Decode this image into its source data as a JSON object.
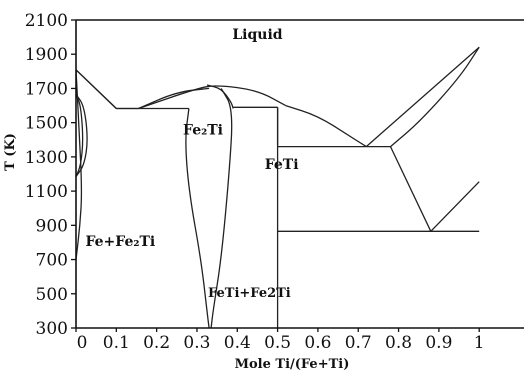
{
  "chart_data": {
    "type": "phase-diagram",
    "xlabel": "Mole Ti/(Fe+Ti)",
    "ylabel": "T (K)",
    "xlim": [
      0,
      1.0
    ],
    "ylim": [
      300,
      2100
    ],
    "x_ticks": [
      "0",
      "0.1",
      "0.2",
      "0.3",
      "0.4",
      "0.5",
      "0.6",
      "0.7",
      "0.8",
      "0.9",
      "1"
    ],
    "y_ticks": [
      "300",
      "500",
      "700",
      "900",
      "1100",
      "1300",
      "1500",
      "1700",
      "1900",
      "2100"
    ],
    "region_labels": [
      {
        "text": "Liquid",
        "x": 0.45,
        "y": 1990
      },
      {
        "text": "Fe₂Ti",
        "x": 0.315,
        "y": 1430
      },
      {
        "text": "FeTi",
        "x": 0.51,
        "y": 1230
      },
      {
        "text": "Fe+Fe₂Ti",
        "x": 0.11,
        "y": 780
      },
      {
        "text": "FeTi+Fe2Ti",
        "x": 0.43,
        "y": 480
      }
    ],
    "boundaries": [
      {
        "name": "liquidus-fe-left",
        "points": [
          [
            0,
            1809
          ],
          [
            0.1,
            1583
          ]
        ]
      },
      {
        "name": "solidus-fe-left",
        "points": [
          [
            0,
            1809
          ],
          [
            0.1,
            1583
          ]
        ]
      },
      {
        "name": "bcc-gamma-loop-outer",
        "points": [
          [
            0,
            1665
          ],
          [
            0.02,
            1600
          ],
          [
            0.03,
            1400
          ],
          [
            0.02,
            1250
          ],
          [
            0,
            1185
          ]
        ]
      },
      {
        "name": "bcc-gamma-loop-inner",
        "points": [
          [
            0,
            1665
          ],
          [
            0.012,
            1600
          ],
          [
            0.018,
            1400
          ],
          [
            0.012,
            1250
          ],
          [
            0,
            1185
          ]
        ]
      },
      {
        "name": "fe-solvus",
        "points": [
          [
            0,
            1809
          ],
          [
            0.008,
            1450
          ],
          [
            0.015,
            1100
          ],
          [
            0.01,
            900
          ],
          [
            0,
            700
          ]
        ]
      },
      {
        "name": "eutectic-fe-fe2ti",
        "points": [
          [
            0.1,
            1583
          ],
          [
            0.28,
            1583
          ]
        ]
      },
      {
        "name": "liquidus-to-fe2ti-left",
        "points": [
          [
            0.1,
            1583
          ],
          [
            0.155,
            1583
          ]
        ]
      },
      {
        "name": "liquidus-to-fe2ti-right",
        "points": [
          [
            0.155,
            1583
          ],
          [
            0.25,
            1680
          ],
          [
            0.33,
            1700
          ]
        ]
      },
      {
        "name": "liquidus-over-fe2ti",
        "points": [
          [
            0.155,
            1583
          ],
          [
            0.3,
            1700
          ],
          [
            0.35,
            1720
          ],
          [
            0.45,
            1690
          ],
          [
            0.52,
            1600
          ]
        ]
      },
      {
        "name": "fe2ti-left-boundary",
        "points": [
          [
            0.28,
            1583
          ],
          [
            0.27,
            1400
          ],
          [
            0.28,
            1100
          ],
          [
            0.31,
            700
          ],
          [
            0.325,
            400
          ],
          [
            0.33,
            300
          ]
        ]
      },
      {
        "name": "fe2ti-right-boundary",
        "points": [
          [
            0.36,
            1700
          ],
          [
            0.39,
            1583
          ],
          [
            0.38,
            1200
          ],
          [
            0.36,
            700
          ],
          [
            0.34,
            400
          ],
          [
            0.335,
            300
          ]
        ]
      },
      {
        "name": "fe2ti-peak-right",
        "points": [
          [
            0.325,
            1720
          ],
          [
            0.36,
            1700
          ],
          [
            0.385,
            1620
          ],
          [
            0.39,
            1583
          ]
        ]
      },
      {
        "name": "peritectic-feti",
        "points": [
          [
            0.39,
            1590
          ],
          [
            0.5,
            1590
          ]
        ]
      },
      {
        "name": "feti-left",
        "points": [
          [
            0.5,
            1590
          ],
          [
            0.5,
            300
          ]
        ]
      },
      {
        "name": "feti-right-top",
        "points": [
          [
            0.5,
            1590
          ],
          [
            0.5,
            1370
          ]
        ]
      },
      {
        "name": "liquidus-feti-to-eutectic",
        "points": [
          [
            0.52,
            1600
          ],
          [
            0.6,
            1540
          ],
          [
            0.68,
            1420
          ],
          [
            0.72,
            1360
          ]
        ]
      },
      {
        "name": "eutectic-feti-beta",
        "points": [
          [
            0.5,
            1360
          ],
          [
            0.78,
            1360
          ]
        ]
      },
      {
        "name": "liquidus-beta",
        "points": [
          [
            0.72,
            1360
          ],
          [
            1.0,
            1941
          ]
        ]
      },
      {
        "name": "solidus-beta",
        "points": [
          [
            0.78,
            1360
          ],
          [
            0.85,
            1500
          ],
          [
            0.95,
            1760
          ],
          [
            1.0,
            1941
          ]
        ]
      },
      {
        "name": "beta-solvus",
        "points": [
          [
            0.78,
            1360
          ],
          [
            0.88,
            865
          ]
        ]
      },
      {
        "name": "eutectoid-line",
        "points": [
          [
            0.5,
            865
          ],
          [
            1.0,
            865
          ]
        ]
      },
      {
        "name": "beta-right-solvus",
        "points": [
          [
            0.88,
            865
          ],
          [
            1.0,
            1155
          ]
        ]
      }
    ]
  }
}
